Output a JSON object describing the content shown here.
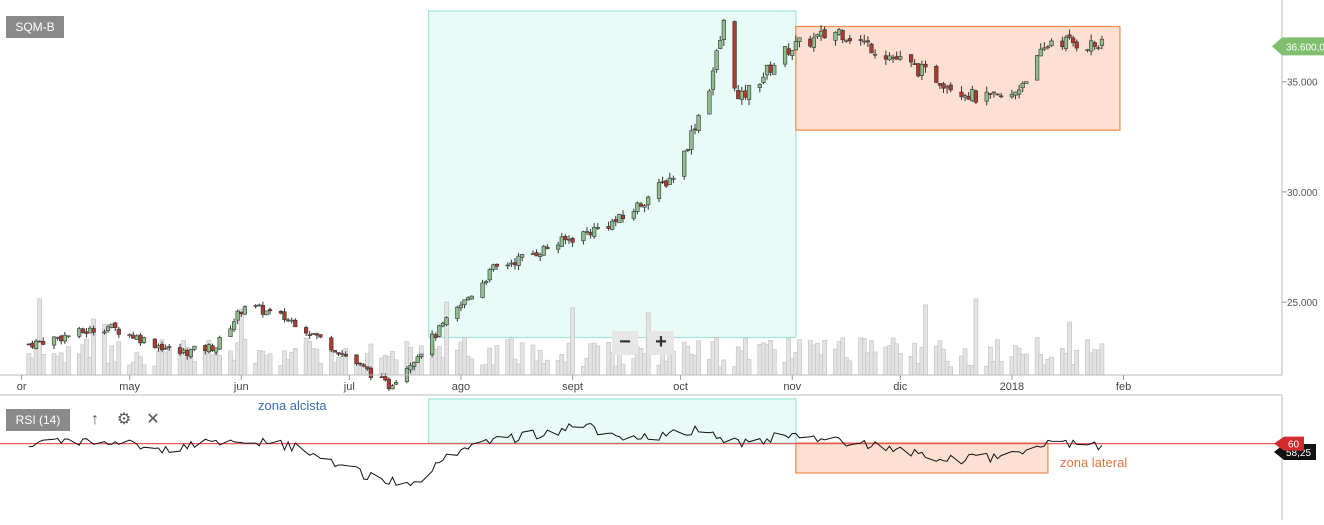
{
  "ticker": "SQM-B",
  "rsi_label": "RSI (14)",
  "toolbar": {
    "up_icon": "arrow-up-icon",
    "settings_icon": "gear-icon",
    "close_icon": "close-icon"
  },
  "zoom": {
    "out": "−",
    "in": "+"
  },
  "annotations": {
    "bull_zone": "zona alcista",
    "lateral_zone": "zona lateral"
  },
  "price_tag": "36.600,0",
  "rsi_tags": {
    "level": "60",
    "value": "58,25"
  },
  "colors": {
    "up": "#8fbf8f",
    "down": "#b03a2e",
    "bull_fill": "#e8fbf7",
    "bull_stroke": "#9fe5dc",
    "lateral_fill": "#fde0d2",
    "lateral_stroke": "#f08a4b",
    "rsi_line": "#e85a5a",
    "price_tag": "#7fbf6f",
    "rsi_tag": "#d22b2b"
  },
  "chart_data": [
    {
      "type": "candlestick",
      "title": "SQM-B",
      "y_ticks": [
        "25.000",
        "30.000",
        "35.000"
      ],
      "y_tick_values": [
        25000,
        30000,
        35000
      ],
      "ylim": [
        21700,
        38700
      ],
      "x_ticks": [
        "or",
        "may",
        "jun",
        "jul",
        "ago",
        "sept",
        "oct",
        "nov",
        "dic",
        "2018",
        "feb"
      ],
      "x_tick_dates": [
        "2017-04-01",
        "2017-05-01",
        "2017-06-01",
        "2017-07-01",
        "2017-08-01",
        "2017-09-01",
        "2017-10-01",
        "2017-11-01",
        "2017-12-01",
        "2018-01-01",
        "2018-02-01"
      ],
      "xlim": [
        "2017-03-26",
        "2018-03-17"
      ],
      "last_price": 36600,
      "close_waypoints": [
        [
          "2017-04-03",
          23100
        ],
        [
          "2017-04-25",
          23900
        ],
        [
          "2017-05-15",
          22700
        ],
        [
          "2017-05-25",
          23000
        ],
        [
          "2017-06-02",
          24900
        ],
        [
          "2017-06-16",
          24100
        ],
        [
          "2017-06-28",
          22800
        ],
        [
          "2017-07-12",
          21200
        ],
        [
          "2017-07-22",
          23000
        ],
        [
          "2017-08-10",
          26500
        ],
        [
          "2017-08-27",
          27600
        ],
        [
          "2017-09-15",
          28800
        ],
        [
          "2017-09-30",
          30900
        ],
        [
          "2017-10-09",
          34800
        ],
        [
          "2017-10-13",
          37600
        ],
        [
          "2017-10-17",
          34100
        ],
        [
          "2017-10-31",
          36500
        ],
        [
          "2017-11-14",
          37300
        ],
        [
          "2017-11-29",
          36100
        ],
        [
          "2017-12-13",
          35000
        ],
        [
          "2017-12-23",
          34200
        ],
        [
          "2018-01-01",
          34300
        ],
        [
          "2018-01-12",
          36900
        ],
        [
          "2018-01-26",
          36600
        ]
      ],
      "volume_note": "daily volume bars shown beneath price"
    },
    {
      "type": "line",
      "title": "RSI (14)",
      "series": [
        {
          "name": "RSI (14)",
          "waypoints": [
            [
              "2017-04-01",
              59
            ],
            [
              "2017-04-20",
              63
            ],
            [
              "2017-05-10",
              56
            ],
            [
              "2017-06-01",
              64
            ],
            [
              "2017-06-15",
              58
            ],
            [
              "2017-07-05",
              38
            ],
            [
              "2017-07-18",
              30
            ],
            [
              "2017-08-01",
              57
            ],
            [
              "2017-08-20",
              66
            ],
            [
              "2017-09-05",
              73
            ],
            [
              "2017-09-15",
              61
            ],
            [
              "2017-10-05",
              70
            ],
            [
              "2017-10-17",
              60
            ],
            [
              "2017-10-31",
              66
            ],
            [
              "2017-11-14",
              62
            ],
            [
              "2017-11-29",
              57
            ],
            [
              "2017-12-15",
              48
            ],
            [
              "2018-01-01",
              51
            ],
            [
              "2018-01-10",
              61
            ],
            [
              "2018-01-26",
              58
            ]
          ]
        }
      ],
      "reference_level": 60,
      "current_value": 58.25
    }
  ],
  "zones": [
    {
      "label": "zona alcista",
      "from": "2017-07-23",
      "to": "2017-11-02",
      "price_from": 23400,
      "price_to": 38200
    },
    {
      "label": "zona lateral",
      "from": "2017-11-02",
      "to": "2018-01-31",
      "price_from": 32800,
      "price_to": 37500
    }
  ]
}
